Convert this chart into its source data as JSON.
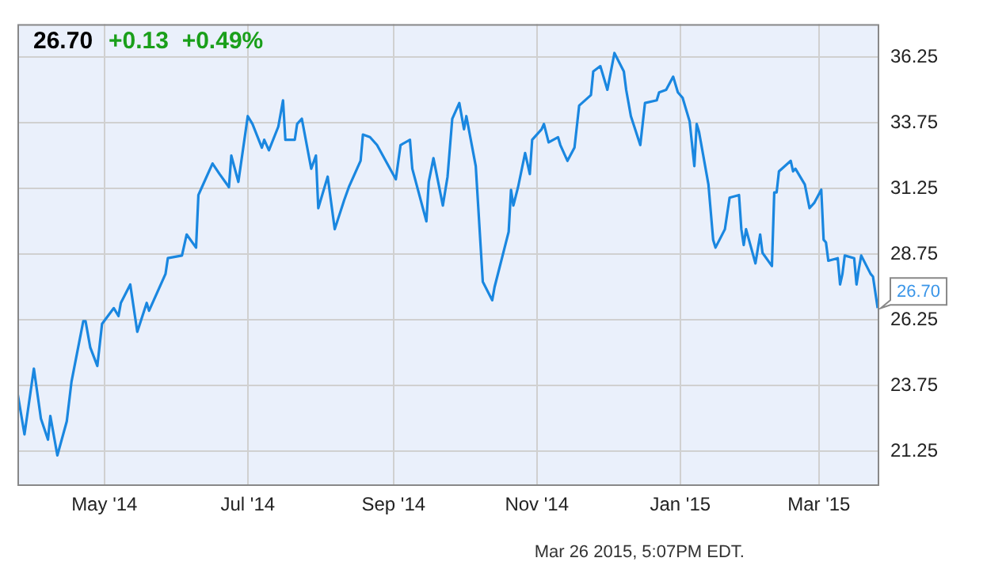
{
  "chart_data": {
    "type": "line",
    "title": "26.70",
    "subtitle": "+0.13  +0.49%",
    "x": [
      "2014-03-25",
      "2014-03-28",
      "2014-04-01",
      "2014-04-04",
      "2014-04-07",
      "2014-04-08",
      "2014-04-11",
      "2014-04-15",
      "2014-04-17",
      "2014-04-22",
      "2014-04-23",
      "2014-04-25",
      "2014-04-28",
      "2014-04-30",
      "2014-05-05",
      "2014-05-07",
      "2014-05-08",
      "2014-05-12",
      "2014-05-15",
      "2014-05-19",
      "2014-05-20",
      "2014-05-27",
      "2014-05-28",
      "2014-06-03",
      "2014-06-05",
      "2014-06-09",
      "2014-06-10",
      "2014-06-16",
      "2014-06-19",
      "2014-06-23",
      "2014-06-24",
      "2014-06-27",
      "2014-07-01",
      "2014-07-03",
      "2014-07-07",
      "2014-07-08",
      "2014-07-10",
      "2014-07-14",
      "2014-07-16",
      "2014-07-17",
      "2014-07-21",
      "2014-07-22",
      "2014-07-24",
      "2014-07-28",
      "2014-07-30",
      "2014-07-31",
      "2014-08-04",
      "2014-08-07",
      "2014-08-11",
      "2014-08-13",
      "2014-08-18",
      "2014-08-19",
      "2014-08-22",
      "2014-08-25",
      "2014-09-02",
      "2014-09-04",
      "2014-09-08",
      "2014-09-09",
      "2014-09-15",
      "2014-09-16",
      "2014-09-18",
      "2014-09-22",
      "2014-09-24",
      "2014-09-26",
      "2014-09-29",
      "2014-10-01",
      "2014-10-02",
      "2014-10-06",
      "2014-10-09",
      "2014-10-13",
      "2014-10-14",
      "2014-10-20",
      "2014-10-21",
      "2014-10-22",
      "2014-10-24",
      "2014-10-27",
      "2014-10-29",
      "2014-10-30",
      "2014-11-03",
      "2014-11-04",
      "2014-11-06",
      "2014-11-10",
      "2014-11-11",
      "2014-11-14",
      "2014-11-17",
      "2014-11-19",
      "2014-11-24",
      "2014-11-25",
      "2014-11-28",
      "2014-12-01",
      "2014-12-04",
      "2014-12-08",
      "2014-12-09",
      "2014-12-11",
      "2014-12-15",
      "2014-12-17",
      "2014-12-22",
      "2014-12-23",
      "2014-12-26",
      "2014-12-29",
      "2014-12-31",
      "2015-01-02",
      "2015-01-05",
      "2015-01-07",
      "2015-01-08",
      "2015-01-09",
      "2015-01-13",
      "2015-01-15",
      "2015-01-16",
      "2015-01-20",
      "2015-01-22",
      "2015-01-26",
      "2015-01-27",
      "2015-01-28",
      "2015-01-29",
      "2015-02-02",
      "2015-02-04",
      "2015-02-05",
      "2015-02-09",
      "2015-02-10",
      "2015-02-11",
      "2015-02-12",
      "2015-02-17",
      "2015-02-18",
      "2015-02-19",
      "2015-02-23",
      "2015-02-25",
      "2015-02-27",
      "2015-03-02",
      "2015-03-03",
      "2015-03-04",
      "2015-03-05",
      "2015-03-09",
      "2015-03-10",
      "2015-03-11",
      "2015-03-12",
      "2015-03-16",
      "2015-03-17",
      "2015-03-18",
      "2015-03-19",
      "2015-03-23",
      "2015-03-24",
      "2015-03-26"
    ],
    "series": [
      {
        "color": "#1a87e0",
        "values": [
          23.5,
          21.9,
          24.4,
          22.5,
          21.7,
          22.6,
          21.1,
          22.4,
          23.9,
          26.2,
          26.2,
          25.2,
          24.5,
          26.1,
          26.7,
          26.4,
          26.9,
          27.6,
          25.8,
          26.9,
          26.6,
          28.0,
          28.6,
          28.7,
          29.5,
          29.0,
          31.0,
          32.2,
          31.8,
          31.3,
          32.5,
          31.5,
          34.0,
          33.7,
          32.8,
          33.1,
          32.7,
          33.6,
          34.6,
          33.1,
          33.1,
          33.7,
          33.9,
          32.0,
          32.5,
          30.5,
          31.7,
          29.7,
          30.8,
          31.3,
          32.3,
          33.3,
          33.2,
          32.9,
          31.6,
          32.9,
          33.1,
          32.0,
          30.0,
          31.5,
          32.4,
          30.6,
          31.7,
          33.9,
          34.5,
          33.5,
          34.0,
          32.1,
          27.7,
          27.0,
          27.5,
          29.6,
          31.2,
          30.6,
          31.3,
          32.6,
          31.8,
          33.1,
          33.5,
          33.7,
          33.0,
          33.2,
          32.9,
          32.3,
          32.8,
          34.4,
          34.8,
          35.7,
          35.9,
          35.0,
          36.4,
          35.7,
          35.0,
          34.0,
          32.9,
          34.5,
          34.6,
          34.9,
          35.0,
          35.5,
          34.9,
          34.7,
          33.8,
          32.1,
          33.7,
          33.4,
          31.4,
          29.3,
          29.0,
          29.7,
          30.9,
          31.0,
          29.7,
          29.1,
          29.7,
          28.4,
          29.5,
          28.8,
          28.3,
          31.1,
          31.1,
          31.9,
          32.3,
          31.9,
          32.0,
          31.4,
          30.5,
          30.7,
          31.2,
          29.3,
          29.2,
          28.5,
          28.6,
          27.6,
          28.0,
          28.7,
          28.6,
          27.6,
          28.2,
          28.7,
          28.0,
          27.9,
          26.7
        ]
      }
    ],
    "xlim": [
      "2014-03-25",
      "2015-03-26"
    ],
    "xticks": [
      {
        "value": "2014-05-01",
        "label": "May '14"
      },
      {
        "value": "2014-07-01",
        "label": "Jul '14"
      },
      {
        "value": "2014-09-01",
        "label": "Sep '14"
      },
      {
        "value": "2014-11-01",
        "label": "Nov '14"
      },
      {
        "value": "2015-01-01",
        "label": "Jan '15"
      },
      {
        "value": "2015-03-01",
        "label": "Mar '15"
      }
    ],
    "ylim": [
      20,
      37.5
    ],
    "yticks": [
      21.25,
      23.75,
      26.25,
      28.75,
      31.25,
      33.75,
      36.25
    ],
    "grid": true,
    "marker": "none",
    "line_style": "solid",
    "annotations": [
      {
        "text": "26.70",
        "x": "2015-03-26",
        "y": 26.7
      },
      "Mar 26 2015, 5:07PM EDT."
    ]
  }
}
